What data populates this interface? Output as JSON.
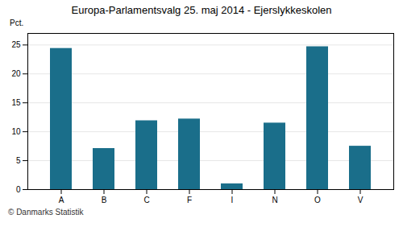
{
  "chart_data": {
    "type": "bar",
    "title": "Europa-Parlamentsvalg 25. maj 2014 - Ejerslykkeskolen",
    "categories": [
      "A",
      "B",
      "C",
      "F",
      "I",
      "N",
      "O",
      "V"
    ],
    "values": [
      24.4,
      7.1,
      11.9,
      12.2,
      1.0,
      11.5,
      24.7,
      7.5
    ],
    "color": "#1a6e8a",
    "ylabel": "Pct.",
    "ylim": [
      0,
      27
    ],
    "yticks": [
      0,
      5,
      10,
      15,
      20,
      25
    ],
    "grid": true,
    "caption": "© Danmarks Statistik"
  }
}
